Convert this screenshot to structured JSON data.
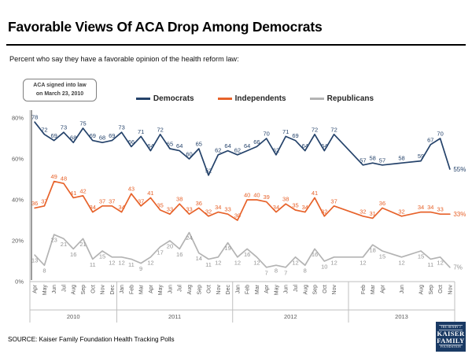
{
  "header": {
    "title": "Favorable Views Of ACA Drop Among Democrats",
    "subtitle": "Percent who say they have a favorable opinion of the health reform law:"
  },
  "annotation": {
    "line1": "ACA signed into law",
    "line2": "on March 23, 2010"
  },
  "legend": [
    {
      "label": "Democrats",
      "color": "#24426a"
    },
    {
      "label": "Independents",
      "color": "#e7622a"
    },
    {
      "label": "Republicans",
      "color": "#b3b3b3"
    }
  ],
  "chart_data": {
    "type": "line",
    "title": "Favorable Views Of ACA Drop Among Democrats",
    "xlabel": "",
    "ylabel": "",
    "ylim": [
      0,
      80
    ],
    "grid": false,
    "legend_position": "top",
    "x_axis": {
      "total_slots": 44,
      "slots": [
        0,
        1,
        2,
        3,
        4,
        5,
        6,
        7,
        8,
        9,
        10,
        11,
        12,
        13,
        14,
        15,
        16,
        17,
        18,
        19,
        20,
        21,
        22,
        23,
        24,
        25,
        26,
        27,
        28,
        29,
        30,
        31,
        34,
        35,
        36,
        38,
        40,
        41,
        42,
        43
      ],
      "tick_labels": [
        "Apr",
        "May",
        "Jun",
        "Jul",
        "Aug",
        "Sep",
        "Oct",
        "Nov",
        "Dec",
        "Jan",
        "Feb",
        "Mar",
        "Apr",
        "May",
        "Jun",
        "Jul",
        "Aug",
        "Sep",
        "Oct",
        "Nov",
        "Dec",
        "Jan",
        "Feb",
        "Mar",
        "Apr",
        "May",
        "Jun",
        "Jul",
        "Aug",
        "Sep",
        "Oct",
        "Nov",
        "Feb",
        "Mar",
        "Apr",
        "Jun",
        "Aug",
        "Sep",
        "Oct",
        "Nov"
      ],
      "year_groups": [
        {
          "label": "2010",
          "start_slot": 0,
          "end_slot": 8
        },
        {
          "label": "2011",
          "start_slot": 9,
          "end_slot": 20
        },
        {
          "label": "2012",
          "start_slot": 21,
          "end_slot": 32
        },
        {
          "label": "2013",
          "start_slot": 33,
          "end_slot": 43
        }
      ]
    },
    "y_axis": {
      "min": 0,
      "max": 80,
      "tick_step": 20,
      "tick_labels": [
        "0%",
        "20%",
        "40%",
        "60%",
        "80%"
      ],
      "axis_color": "#bfbfbf",
      "text_color": "#595959"
    },
    "series": [
      {
        "name": "Democrats",
        "color": "#24426a",
        "label_color": "#24426a",
        "label_position": "above",
        "values": [
          78,
          72,
          69,
          73,
          68,
          75,
          69,
          68,
          69,
          73,
          66,
          71,
          64,
          72,
          65,
          64,
          60,
          65,
          52,
          62,
          64,
          62,
          64,
          66,
          70,
          62,
          71,
          69,
          64,
          72,
          64,
          72,
          57,
          58,
          57,
          58,
          59,
          67,
          70,
          55
        ]
      },
      {
        "name": "Independents",
        "color": "#e7622a",
        "label_color": "#e7622a",
        "label_position": "above",
        "values": [
          36,
          37,
          49,
          48,
          41,
          42,
          34,
          37,
          37,
          34,
          43,
          37,
          41,
          35,
          33,
          38,
          33,
          36,
          32,
          34,
          33,
          30,
          40,
          40,
          39,
          34,
          38,
          35,
          34,
          41,
          32,
          37,
          32,
          31,
          36,
          32,
          34,
          34,
          33,
          33
        ]
      },
      {
        "name": "Republicans",
        "color": "#b3b3b3",
        "label_color": "#949494",
        "label_position": "below",
        "values": [
          13,
          8,
          23,
          21,
          16,
          21,
          11,
          15,
          12,
          12,
          11,
          9,
          12,
          17,
          20,
          16,
          24,
          14,
          11,
          12,
          19,
          12,
          16,
          12,
          7,
          8,
          7,
          12,
          8,
          16,
          10,
          12,
          12,
          18,
          15,
          12,
          15,
          11,
          12,
          7
        ]
      }
    ],
    "last_label_suffix": "%"
  },
  "footer": {
    "source": "SOURCE: Kaiser Family Foundation Health Tracking Polls"
  },
  "logo": {
    "line1": "THE HENRY J",
    "line2": "KAISER",
    "line3": "FAMILY",
    "line4": "FOUNDATION"
  }
}
